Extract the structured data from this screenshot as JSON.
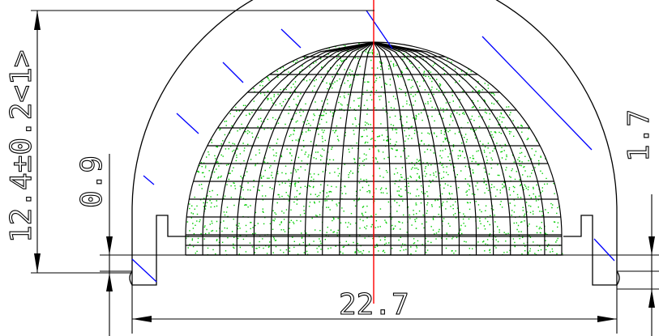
{
  "drawing": {
    "dimensions": {
      "height_total": "12.4±0.2<1>",
      "flange_gap": "0.9",
      "rim_height": "1.7",
      "width": "22.7"
    },
    "colors": {
      "outline": "#000000",
      "center_line": "#ff0000",
      "hatch": "#0000ff",
      "surface_texture": "#00cc00"
    }
  }
}
